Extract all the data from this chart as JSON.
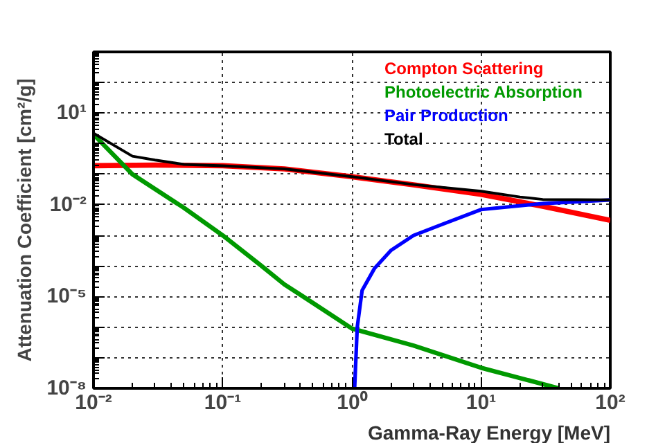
{
  "chart_data": {
    "type": "line",
    "xlabel": "Gamma-Ray Energy [MeV]",
    "ylabel": "Attenuation Coefficient [cm²/g]",
    "log": "xy",
    "grid": true,
    "legend": "top right",
    "line_style": "solid",
    "marker": "none",
    "xlim": [
      0.01,
      100
    ],
    "ylim": [
      1e-08,
      1000
    ],
    "xticks": [
      {
        "value": 0.01,
        "label": "10⁻²"
      },
      {
        "value": 0.1,
        "label": "10⁻¹"
      },
      {
        "value": 1,
        "label": "10⁰"
      },
      {
        "value": 10,
        "label": "10¹"
      },
      {
        "value": 100,
        "label": "10²"
      }
    ],
    "yticks": [
      {
        "value": 1e-08,
        "label": "10⁻⁸"
      },
      {
        "value": 1e-07,
        "label": null
      },
      {
        "value": 1e-06,
        "label": null
      },
      {
        "value": 1e-05,
        "label": "10⁻⁵"
      },
      {
        "value": 0.0001,
        "label": null
      },
      {
        "value": 0.001,
        "label": null
      },
      {
        "value": 0.01,
        "label": "10⁻²"
      },
      {
        "value": 0.1,
        "label": null
      },
      {
        "value": 1,
        "label": null
      },
      {
        "value": 10,
        "label": "10¹"
      },
      {
        "value": 100,
        "label": null
      }
    ],
    "series": [
      {
        "name": "Compton Scattering",
        "color": "#ff0000",
        "x": [
          0.01,
          0.03,
          0.1,
          0.3,
          1,
          3,
          10,
          30,
          100
        ],
        "values": [
          0.19,
          0.2,
          0.19,
          0.15,
          0.083,
          0.045,
          0.022,
          0.009,
          0.0031
        ]
      },
      {
        "name": "Photoelectric Absorption",
        "color": "#009900",
        "x": [
          0.01,
          0.02,
          0.05,
          0.1,
          0.2,
          0.3,
          0.42,
          1,
          3,
          10,
          40
        ],
        "values": [
          2.0,
          0.1,
          0.008,
          0.001,
          0.0001,
          2.5e-05,
          1e-05,
          9e-07,
          2.5e-07,
          4.7e-08,
          1e-08
        ]
      },
      {
        "name": "Pair Production",
        "color": "#0000ff",
        "x": [
          1.05,
          1.1,
          1.2,
          1.5,
          2,
          3,
          5,
          10,
          30,
          100
        ],
        "values": [
          1e-08,
          1e-06,
          1.6e-05,
          8.5e-05,
          0.00032,
          0.001,
          0.0023,
          0.007,
          0.011,
          0.0145
        ]
      },
      {
        "name": "Total",
        "color": "#000000",
        "x": [
          0.01,
          0.02,
          0.03,
          0.05,
          0.1,
          0.3,
          1,
          3,
          10,
          20,
          30,
          100
        ],
        "values": [
          2.2,
          0.39,
          0.29,
          0.21,
          0.19,
          0.15,
          0.083,
          0.046,
          0.028,
          0.018,
          0.015,
          0.0145
        ]
      }
    ]
  }
}
